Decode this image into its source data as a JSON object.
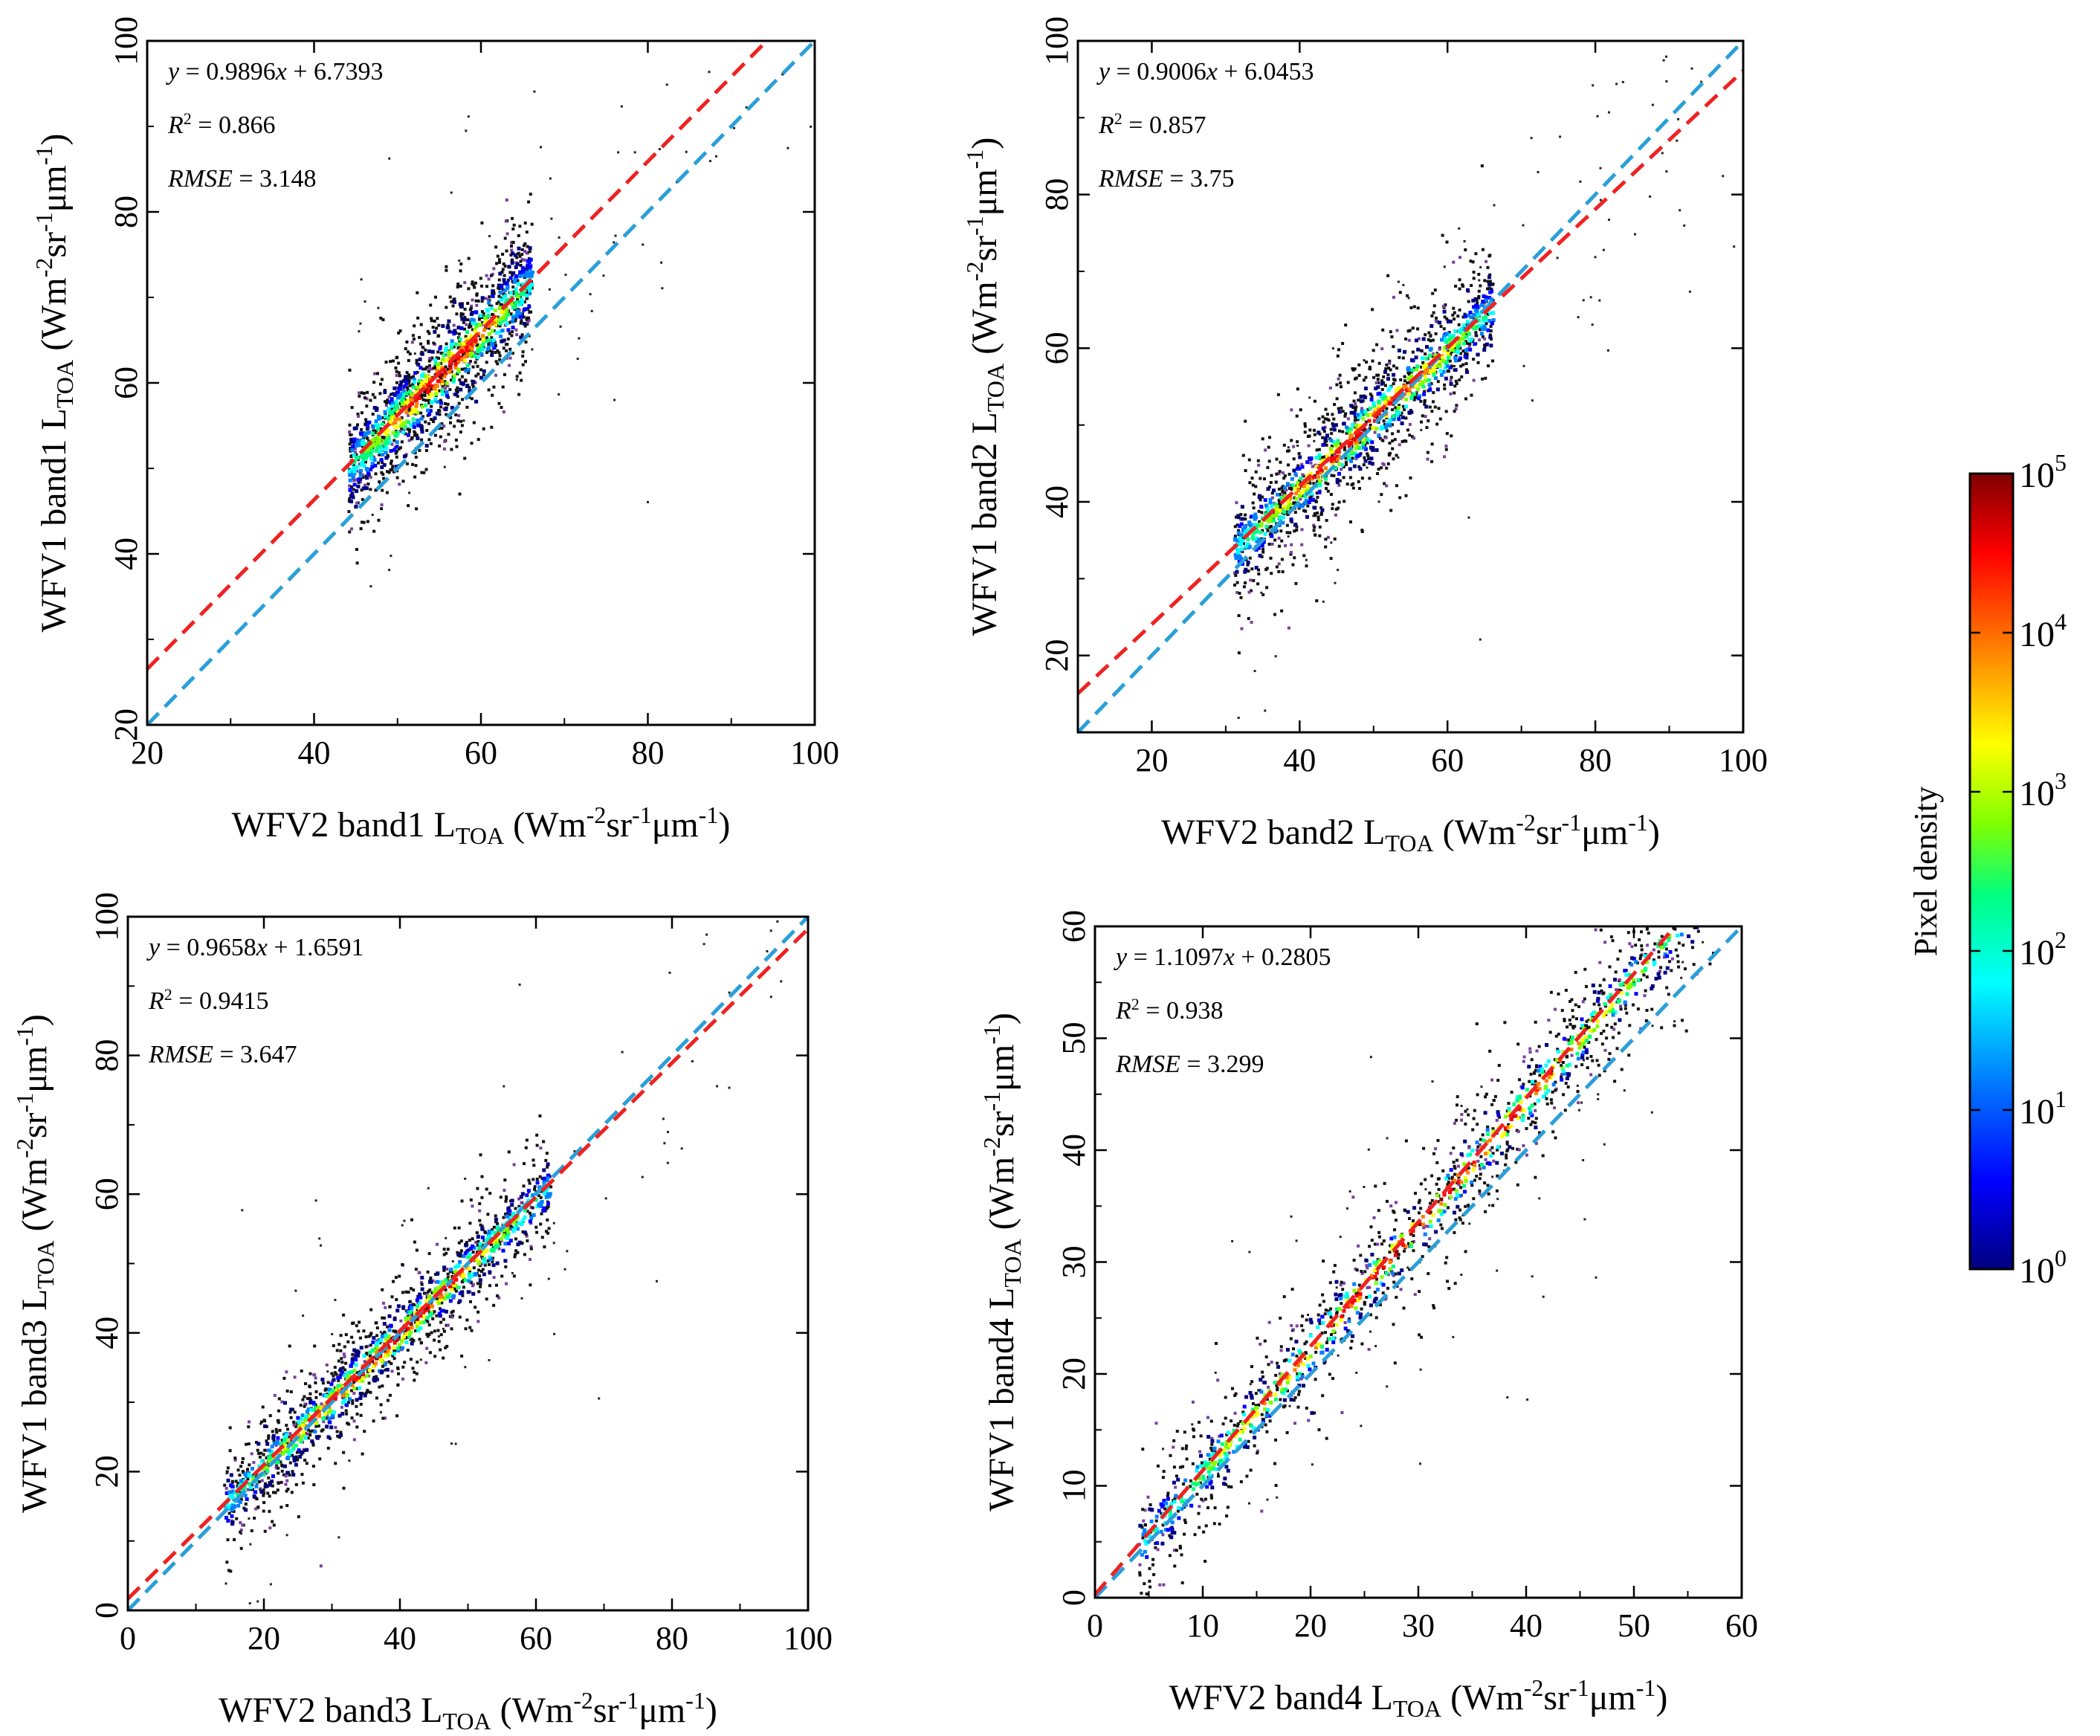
{
  "chart_data": [
    {
      "type": "scatter",
      "id": "band1",
      "xlim": [
        20,
        100
      ],
      "ylim": [
        20,
        100
      ],
      "xticks": [
        20,
        40,
        60,
        80,
        100
      ],
      "yticks": [
        20,
        40,
        60,
        80,
        100
      ],
      "xlabel": {
        "main": "WFV2 band1 L",
        "sub": "TOA",
        "unit": " (Wm",
        "e1": "-2",
        "m2": "sr",
        "e2": "-1",
        "m3": "μm",
        "e3": "-1",
        "end": ")"
      },
      "ylabel": {
        "main": "WFV1 band1 L",
        "sub": "TOA",
        "unit": " (Wm",
        "e1": "-2",
        "m2": "sr",
        "e2": "-1",
        "m3": "μm",
        "e3": "-1",
        "end": ")"
      },
      "fit": {
        "slope": 0.9896,
        "intercept": 6.7393
      },
      "equation_text": {
        "y": "y",
        "eq": " = 0.9896",
        "x": "x",
        "rest": " + 6.7393"
      },
      "r2_text": {
        "r": "R",
        "sup": "2",
        "rest": " = 0.866"
      },
      "rmse_text": {
        "label": "RMSE",
        "rest": " = 3.148"
      },
      "cluster": {
        "x_range": [
          44,
          66
        ],
        "core_spread": 2.2,
        "outer_spread": 4.5
      }
    },
    {
      "type": "scatter",
      "id": "band2",
      "xlim": [
        10,
        100
      ],
      "ylim": [
        10,
        100
      ],
      "xticks": [
        20,
        40,
        60,
        80,
        100
      ],
      "yticks": [
        20,
        40,
        60,
        80,
        100
      ],
      "xlabel": {
        "main": "WFV2 band2 L",
        "sub": "TOA",
        "unit": " (Wm",
        "e1": "-2",
        "m2": "sr",
        "e2": "-1",
        "m3": "μm",
        "e3": "-1",
        "end": ")"
      },
      "ylabel": {
        "main": "WFV1 band2 L",
        "sub": "TOA",
        "unit": " (Wm",
        "e1": "-2",
        "m2": "sr",
        "e2": "-1",
        "m3": "μm",
        "e3": "-1",
        "end": ")"
      },
      "fit": {
        "slope": 0.9006,
        "intercept": 6.0453
      },
      "equation_text": {
        "y": "y",
        "eq": " = 0.9006",
        "x": "x",
        "rest": " + 6.0453"
      },
      "r2_text": {
        "r": "R",
        "sup": "2",
        "rest": " = 0.857"
      },
      "rmse_text": {
        "label": "RMSE",
        "rest": " = 3.75"
      },
      "cluster": {
        "x_range": [
          31,
          66
        ],
        "core_spread": 2.0,
        "outer_spread": 5.0
      }
    },
    {
      "type": "scatter",
      "id": "band3",
      "xlim": [
        0,
        100
      ],
      "ylim": [
        0,
        100
      ],
      "xticks": [
        0,
        20,
        40,
        60,
        80,
        100
      ],
      "yticks": [
        0,
        20,
        40,
        60,
        80,
        100
      ],
      "xlabel": {
        "main": "WFV2 band3 L",
        "sub": "TOA",
        "unit": " (Wm",
        "e1": "-2",
        "m2": "sr",
        "e2": "-1",
        "m3": "μm",
        "e3": "-1",
        "end": ")"
      },
      "ylabel": {
        "main": "WFV1 band3 L",
        "sub": "TOA",
        "unit": " (Wm",
        "e1": "-2",
        "m2": "sr",
        "e2": "-1",
        "m3": "μm",
        "e3": "-1",
        "end": ")"
      },
      "fit": {
        "slope": 0.9658,
        "intercept": 1.6591
      },
      "equation_text": {
        "y": "y",
        "eq": " = 0.9658",
        "x": "x",
        "rest": " + 1.6591"
      },
      "r2_text": {
        "r": "R",
        "sup": "2",
        "rest": " = 0.9415"
      },
      "rmse_text": {
        "label": "RMSE",
        "rest": " = 3.647"
      },
      "cluster": {
        "x_range": [
          14,
          62
        ],
        "core_spread": 1.8,
        "outer_spread": 4.5
      }
    },
    {
      "type": "scatter",
      "id": "band4",
      "xlim": [
        0,
        60
      ],
      "ylim": [
        0,
        60
      ],
      "xticks": [
        0,
        10,
        20,
        30,
        40,
        50,
        60
      ],
      "yticks": [
        0,
        10,
        20,
        30,
        40,
        50,
        60
      ],
      "xlabel": {
        "main": "WFV2 band4 L",
        "sub": "TOA",
        "unit": " (Wm",
        "e1": "-2",
        "m2": "sr",
        "e2": "-1",
        "m3": "μm",
        "e3": "-1",
        "end": ")"
      },
      "ylabel": {
        "main": "WFV1 band4 L",
        "sub": "TOA",
        "unit": " (Wm",
        "e1": "-2",
        "m2": "sr",
        "e2": "-1",
        "m3": "μm",
        "e3": "-1",
        "end": ")"
      },
      "fit": {
        "slope": 1.1097,
        "intercept": 0.2805
      },
      "equation_text": {
        "y": "y",
        "eq": " = 1.1097",
        "x": "x",
        "rest": " + 0.2805"
      },
      "r2_text": {
        "r": "R",
        "sup": "2",
        "rest": " = 0.938"
      },
      "rmse_text": {
        "label": "RMSE",
        "rest": " = 3.299"
      },
      "cluster": {
        "x_range": [
          4,
          58
        ],
        "core_spread": 1.2,
        "outer_spread": 3.5
      }
    }
  ],
  "reference_line": {
    "slope": 1,
    "intercept": 0,
    "color": "#2a9fd8"
  },
  "fit_line_color": "#ee2222",
  "colorbar": {
    "title": "Pixel density",
    "scale": "log",
    "ticks": [
      {
        "base": "10",
        "exp": "0",
        "value": 0
      },
      {
        "base": "10",
        "exp": "1",
        "value": 1
      },
      {
        "base": "10",
        "exp": "2",
        "value": 2
      },
      {
        "base": "10",
        "exp": "3",
        "value": 3
      },
      {
        "base": "10",
        "exp": "4",
        "value": 4
      },
      {
        "base": "10",
        "exp": "5",
        "value": 5
      }
    ],
    "colors": [
      "#00007f",
      "#0000ff",
      "#0080ff",
      "#00ffff",
      "#00ff80",
      "#80ff00",
      "#ffff00",
      "#ff8000",
      "#ff0000",
      "#7f0000"
    ]
  }
}
